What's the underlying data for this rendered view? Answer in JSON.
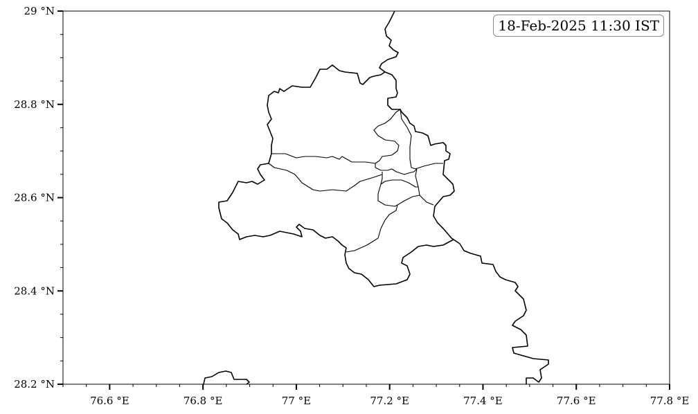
{
  "timestamp_label": "18-Feb-2025 11:30 IST",
  "map": {
    "extent": {
      "lon": [
        76.5,
        77.8
      ],
      "lat": [
        28.2,
        29.0
      ]
    },
    "x_ticks": [
      {
        "value": 76.6,
        "label": "76.6 °E"
      },
      {
        "value": 76.8,
        "label": "76.8 °E"
      },
      {
        "value": 77.0,
        "label": "77 °E"
      },
      {
        "value": 77.2,
        "label": "77.2 °E"
      },
      {
        "value": 77.4,
        "label": "77.4 °E"
      },
      {
        "value": 77.6,
        "label": "77.6 °E"
      },
      {
        "value": 77.8,
        "label": "77.8 °E"
      }
    ],
    "y_ticks": [
      {
        "value": 28.2,
        "label": "28.2 °N"
      },
      {
        "value": 28.4,
        "label": "28.4 °N"
      },
      {
        "value": 28.6,
        "label": "28.6 °N"
      },
      {
        "value": 28.8,
        "label": "28.8 °N"
      },
      {
        "value": 29.0,
        "label": "29 °N"
      }
    ],
    "boundary_color": "#000000"
  }
}
